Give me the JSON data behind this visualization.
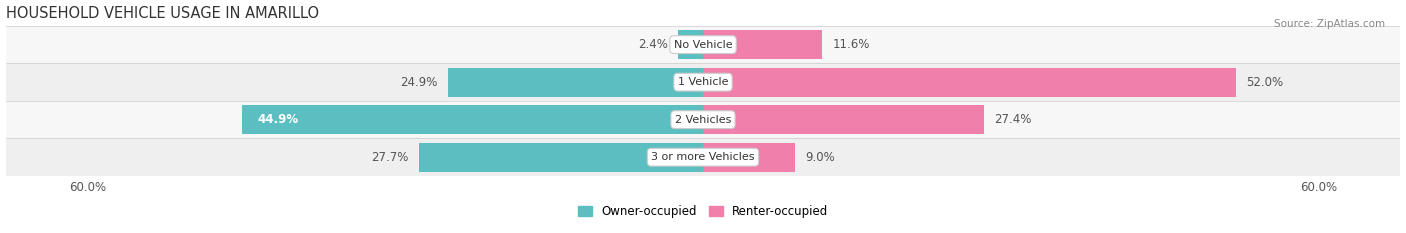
{
  "title": "HOUSEHOLD VEHICLE USAGE IN AMARILLO",
  "source": "Source: ZipAtlas.com",
  "categories": [
    "No Vehicle",
    "1 Vehicle",
    "2 Vehicles",
    "3 or more Vehicles"
  ],
  "owner_values": [
    2.4,
    24.9,
    44.9,
    27.7
  ],
  "renter_values": [
    11.6,
    52.0,
    27.4,
    9.0
  ],
  "owner_color": "#5bbfc2",
  "renter_color": "#f07fab",
  "row_bg_colors": [
    "#f7f7f7",
    "#efefef"
  ],
  "xlim_left": -68,
  "xlim_right": 68,
  "x_tick_left": -60,
  "x_tick_right": 60,
  "x_tick_label_left": "60.0%",
  "x_tick_label_right": "60.0%",
  "legend_owner": "Owner-occupied",
  "legend_renter": "Renter-occupied",
  "title_fontsize": 10.5,
  "source_fontsize": 7.5,
  "label_fontsize": 8.5,
  "cat_fontsize": 8.0,
  "bar_height": 0.78,
  "figsize": [
    14.06,
    2.33
  ],
  "dpi": 100
}
